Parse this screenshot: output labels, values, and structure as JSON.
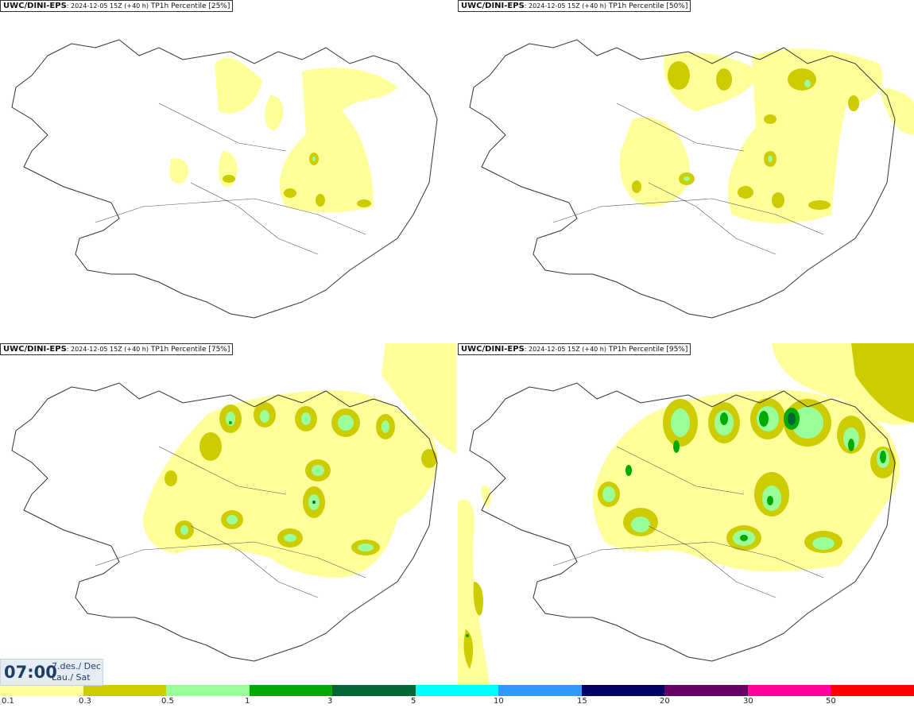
{
  "panels": [
    {
      "model": "UWC/DINI-EPS",
      "run": ": 2024-12-05 15Z (+40 h)",
      "field": "TP1h Percentile [25%]"
    },
    {
      "model": "UWC/DINI-EPS",
      "run": ": 2024-12-05 15Z (+40 h)",
      "field": "TP1h Percentile [50%]"
    },
    {
      "model": "UWC/DINI-EPS",
      "run": ": 2024-12-05 15Z (+40 h)",
      "field": "TP1h Percentile [75%]"
    },
    {
      "model": "UWC/DINI-EPS",
      "run": ": 2024-12-05 15Z (+40 h)",
      "field": "TP1h Percentile [95%]"
    }
  ],
  "valid_time": {
    "time": "07:00",
    "date_line1": "7.des./ Dec",
    "date_line2": "Lau./ Sat"
  },
  "legend": {
    "colors": [
      "#ffff99",
      "#cccc00",
      "#99ff99",
      "#00aa00",
      "#006633",
      "#00ffff",
      "#3399ff",
      "#000066",
      "#660066",
      "#ff0099",
      "#ff0000"
    ],
    "ticks": [
      "0.1",
      "0.3",
      "0.5",
      "1",
      "3",
      "5",
      "10",
      "15",
      "20",
      "30",
      "50"
    ]
  }
}
